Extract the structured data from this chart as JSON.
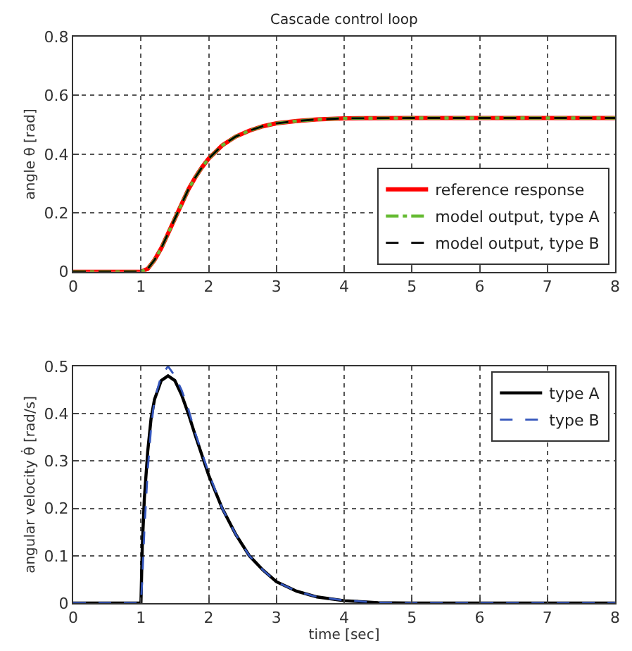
{
  "chart_data": [
    {
      "type": "line",
      "title": "Cascade control loop",
      "ylabel": "angle θ [rad]",
      "xlim": [
        0,
        8
      ],
      "xticks": [
        0,
        1,
        2,
        3,
        4,
        5,
        6,
        7,
        8
      ],
      "ylim": [
        0,
        0.8
      ],
      "yticks": [
        0,
        0.2,
        0.4,
        0.6,
        0.8
      ],
      "grid": true,
      "legend": "bottom right",
      "x": [
        0,
        1,
        1.1,
        1.2,
        1.3,
        1.4,
        1.5,
        1.6,
        1.7,
        1.8,
        1.9,
        2.0,
        2.2,
        2.4,
        2.6,
        2.8,
        3.0,
        3.3,
        3.6,
        4.0,
        5,
        6,
        7,
        8
      ],
      "series": [
        {
          "name": "reference response",
          "color": "#ff0000",
          "line_style": "solid",
          "values": [
            0,
            0,
            0.01,
            0.04,
            0.08,
            0.13,
            0.18,
            0.23,
            0.28,
            0.32,
            0.355,
            0.385,
            0.43,
            0.46,
            0.48,
            0.495,
            0.505,
            0.513,
            0.518,
            0.522,
            0.523,
            0.523,
            0.523,
            0.523
          ]
        },
        {
          "name": "model output, type A",
          "color": "#66bb33",
          "line_style": "dashdot",
          "values": [
            0,
            0,
            0.01,
            0.04,
            0.08,
            0.13,
            0.18,
            0.23,
            0.28,
            0.32,
            0.355,
            0.385,
            0.43,
            0.46,
            0.48,
            0.495,
            0.505,
            0.513,
            0.518,
            0.522,
            0.523,
            0.523,
            0.523,
            0.523
          ]
        },
        {
          "name": "model output, type B",
          "color": "#000000",
          "line_style": "dashed",
          "values": [
            0,
            0,
            0.01,
            0.04,
            0.08,
            0.13,
            0.18,
            0.23,
            0.28,
            0.32,
            0.355,
            0.385,
            0.43,
            0.46,
            0.48,
            0.495,
            0.505,
            0.513,
            0.518,
            0.522,
            0.523,
            0.523,
            0.523,
            0.523
          ]
        }
      ]
    },
    {
      "type": "line",
      "xlabel": "time [sec]",
      "ylabel": "angular velocity θ̇ [rad/s]",
      "xlim": [
        0,
        8
      ],
      "xticks": [
        0,
        1,
        2,
        3,
        4,
        5,
        6,
        7,
        8
      ],
      "ylim": [
        0,
        0.5
      ],
      "yticks": [
        0,
        0.1,
        0.2,
        0.3,
        0.4,
        0.5
      ],
      "grid": true,
      "legend": "top right",
      "x": [
        0,
        1,
        1.02,
        1.05,
        1.1,
        1.15,
        1.2,
        1.3,
        1.4,
        1.5,
        1.6,
        1.7,
        1.8,
        2.0,
        2.2,
        2.4,
        2.6,
        2.8,
        3.0,
        3.3,
        3.6,
        4.0,
        4.5,
        5,
        8
      ],
      "series": [
        {
          "name": "type A",
          "color": "#000000",
          "line_style": "solid",
          "values": [
            0,
            0,
            0.12,
            0.22,
            0.32,
            0.39,
            0.43,
            0.47,
            0.48,
            0.47,
            0.44,
            0.4,
            0.355,
            0.27,
            0.2,
            0.145,
            0.1,
            0.07,
            0.045,
            0.025,
            0.013,
            0.005,
            0.001,
            0,
            0
          ]
        },
        {
          "name": "type B",
          "color": "#3355bb",
          "line_style": "dashed",
          "values": [
            0,
            0,
            0.05,
            0.15,
            0.28,
            0.37,
            0.43,
            0.48,
            0.5,
            0.48,
            0.45,
            0.41,
            0.36,
            0.275,
            0.2,
            0.145,
            0.1,
            0.07,
            0.045,
            0.025,
            0.013,
            0.006,
            0.001,
            0,
            0
          ]
        }
      ]
    }
  ]
}
